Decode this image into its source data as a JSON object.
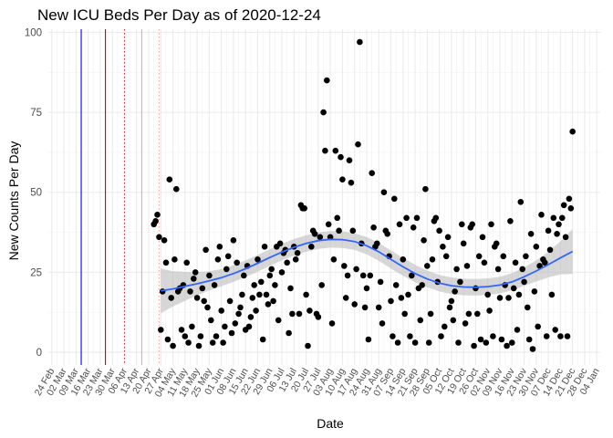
{
  "chart_data": {
    "type": "scatter",
    "title": "New ICU Beds Per Day as of 2020-12-24",
    "xlabel": "Date",
    "ylabel": "New Counts Per Day",
    "xlim": [
      "2020-02-22",
      "2021-01-06"
    ],
    "ylim": [
      -4,
      101
    ],
    "y_ticks": [
      0,
      25,
      50,
      75,
      100
    ],
    "y_tick_labels": [
      "0",
      "25",
      "50",
      "75",
      "100"
    ],
    "x_ticks": [
      "2020-02-24",
      "2020-03-02",
      "2020-03-09",
      "2020-03-16",
      "2020-03-23",
      "2020-03-30",
      "2020-04-06",
      "2020-04-13",
      "2020-04-20",
      "2020-04-27",
      "2020-05-04",
      "2020-05-11",
      "2020-05-18",
      "2020-05-25",
      "2020-06-01",
      "2020-06-08",
      "2020-06-15",
      "2020-06-22",
      "2020-06-29",
      "2020-07-06",
      "2020-07-13",
      "2020-07-20",
      "2020-07-27",
      "2020-08-03",
      "2020-08-10",
      "2020-08-17",
      "2020-08-24",
      "2020-08-31",
      "2020-09-07",
      "2020-09-14",
      "2020-09-21",
      "2020-09-28",
      "2020-10-05",
      "2020-10-12",
      "2020-10-19",
      "2020-10-26",
      "2020-11-02",
      "2020-11-09",
      "2020-11-16",
      "2020-11-23",
      "2020-11-30",
      "2020-12-07",
      "2020-12-14",
      "2020-12-21",
      "2020-12-28",
      "2021-01-04"
    ],
    "x_tick_labels": [
      "24 Feb",
      "02 Mar",
      "09 Mar",
      "16 Mar",
      "23 Mar",
      "30 Mar",
      "06 Apr",
      "13 Apr",
      "20 Apr",
      "27 Apr",
      "04 May",
      "11 May",
      "18 May",
      "25 May",
      "01 Jun",
      "08 Jun",
      "15 Jun",
      "22 Jun",
      "29 Jun",
      "06 Jul",
      "13 Jul",
      "20 Jul",
      "27 Jul",
      "03 Aug",
      "10 Aug",
      "17 Aug",
      "24 Aug",
      "31 Aug",
      "07 Sep",
      "14 Sep",
      "21 Sep",
      "28 Sep",
      "05 Oct",
      "12 Oct",
      "19 Oct",
      "26 Oct",
      "02 Nov",
      "09 Nov",
      "16 Nov",
      "23 Nov",
      "30 Nov",
      "07 Dec",
      "14 Dec",
      "21 Dec",
      "28 Dec",
      "04 Jan"
    ],
    "grid": true,
    "reference_lines": [
      {
        "date": "2020-03-12",
        "color": "#0000ff",
        "style": "solid"
      },
      {
        "date": "2020-03-26",
        "color": "#cc0000",
        "style": "solid"
      },
      {
        "date": "2020-04-06",
        "color": "#cc3333",
        "style": "dotted"
      },
      {
        "date": "2020-04-16",
        "color": "#f4a6a6",
        "style": "solid"
      },
      {
        "date": "2020-04-26",
        "color": "#f4a6a6",
        "style": "dotted"
      }
    ],
    "point_color": "#000000",
    "smooth_color": "#3366ff",
    "band_color": "#bdbdbd",
    "points": [
      [
        "2020-04-23",
        40
      ],
      [
        "2020-04-24",
        41
      ],
      [
        "2020-04-25",
        43
      ],
      [
        "2020-04-26",
        36
      ],
      [
        "2020-04-27",
        7
      ],
      [
        "2020-04-28",
        19
      ],
      [
        "2020-04-29",
        35
      ],
      [
        "2020-04-30",
        28
      ],
      [
        "2020-05-01",
        4
      ],
      [
        "2020-05-02",
        54
      ],
      [
        "2020-05-03",
        17
      ],
      [
        "2020-05-04",
        2
      ],
      [
        "2020-05-05",
        29
      ],
      [
        "2020-05-06",
        51
      ],
      [
        "2020-05-07",
        19
      ],
      [
        "2020-05-08",
        20
      ],
      [
        "2020-05-09",
        7
      ],
      [
        "2020-05-10",
        21
      ],
      [
        "2020-05-11",
        5
      ],
      [
        "2020-05-12",
        28
      ],
      [
        "2020-05-13",
        3
      ],
      [
        "2020-05-14",
        19
      ],
      [
        "2020-05-15",
        8
      ],
      [
        "2020-05-16",
        23
      ],
      [
        "2020-05-17",
        25
      ],
      [
        "2020-05-18",
        17
      ],
      [
        "2020-05-19",
        2
      ],
      [
        "2020-05-20",
        5
      ],
      [
        "2020-05-21",
        20
      ],
      [
        "2020-05-22",
        16
      ],
      [
        "2020-05-23",
        32
      ],
      [
        "2020-05-24",
        14
      ],
      [
        "2020-05-25",
        24
      ],
      [
        "2020-05-26",
        10
      ],
      [
        "2020-05-27",
        3
      ],
      [
        "2020-05-28",
        21
      ],
      [
        "2020-05-29",
        5
      ],
      [
        "2020-05-30",
        29
      ],
      [
        "2020-05-31",
        33
      ],
      [
        "2020-06-01",
        13
      ],
      [
        "2020-06-02",
        3
      ],
      [
        "2020-06-03",
        8
      ],
      [
        "2020-06-04",
        26
      ],
      [
        "2020-06-05",
        30
      ],
      [
        "2020-06-06",
        16
      ],
      [
        "2020-06-07",
        6
      ],
      [
        "2020-06-08",
        35
      ],
      [
        "2020-06-09",
        9
      ],
      [
        "2020-06-10",
        28
      ],
      [
        "2020-06-11",
        12
      ],
      [
        "2020-06-12",
        14
      ],
      [
        "2020-06-13",
        18
      ],
      [
        "2020-06-14",
        24
      ],
      [
        "2020-06-15",
        7
      ],
      [
        "2020-06-16",
        27
      ],
      [
        "2020-06-17",
        8
      ],
      [
        "2020-06-18",
        11
      ],
      [
        "2020-06-19",
        17
      ],
      [
        "2020-06-20",
        21
      ],
      [
        "2020-06-21",
        13
      ],
      [
        "2020-06-22",
        29
      ],
      [
        "2020-06-23",
        18
      ],
      [
        "2020-06-24",
        22
      ],
      [
        "2020-06-25",
        4
      ],
      [
        "2020-06-26",
        33
      ],
      [
        "2020-06-27",
        18
      ],
      [
        "2020-06-28",
        15
      ],
      [
        "2020-06-29",
        24
      ],
      [
        "2020-06-30",
        26
      ],
      [
        "2020-07-01",
        16
      ],
      [
        "2020-07-02",
        21
      ],
      [
        "2020-07-03",
        33
      ],
      [
        "2020-07-04",
        10
      ],
      [
        "2020-07-05",
        34
      ],
      [
        "2020-07-06",
        25
      ],
      [
        "2020-07-07",
        31
      ],
      [
        "2020-07-08",
        32
      ],
      [
        "2020-07-09",
        28
      ],
      [
        "2020-07-10",
        6
      ],
      [
        "2020-07-11",
        20
      ],
      [
        "2020-07-12",
        12
      ],
      [
        "2020-07-13",
        33
      ],
      [
        "2020-07-14",
        29
      ],
      [
        "2020-07-15",
        31
      ],
      [
        "2020-07-16",
        12
      ],
      [
        "2020-07-17",
        46
      ],
      [
        "2020-07-18",
        45
      ],
      [
        "2020-07-19",
        45
      ],
      [
        "2020-07-20",
        18
      ],
      [
        "2020-07-21",
        2
      ],
      [
        "2020-07-22",
        13
      ],
      [
        "2020-07-23",
        33
      ],
      [
        "2020-07-24",
        38
      ],
      [
        "2020-07-25",
        37
      ],
      [
        "2020-07-26",
        12
      ],
      [
        "2020-07-27",
        11
      ],
      [
        "2020-07-28",
        36
      ],
      [
        "2020-07-29",
        21
      ],
      [
        "2020-07-30",
        75
      ],
      [
        "2020-07-31",
        63
      ],
      [
        "2020-08-01",
        85
      ],
      [
        "2020-08-02",
        40
      ],
      [
        "2020-08-03",
        36
      ],
      [
        "2020-08-04",
        9
      ],
      [
        "2020-08-05",
        29
      ],
      [
        "2020-08-06",
        63
      ],
      [
        "2020-08-07",
        42
      ],
      [
        "2020-08-08",
        38
      ],
      [
        "2020-08-09",
        61
      ],
      [
        "2020-08-10",
        54
      ],
      [
        "2020-08-11",
        27
      ],
      [
        "2020-08-12",
        17
      ],
      [
        "2020-08-13",
        24
      ],
      [
        "2020-08-14",
        60
      ],
      [
        "2020-08-15",
        53
      ],
      [
        "2020-08-16",
        38
      ],
      [
        "2020-08-17",
        15
      ],
      [
        "2020-08-18",
        26
      ],
      [
        "2020-08-19",
        65
      ],
      [
        "2020-08-20",
        97
      ],
      [
        "2020-08-21",
        34
      ],
      [
        "2020-08-22",
        24
      ],
      [
        "2020-08-23",
        14
      ],
      [
        "2020-08-24",
        20
      ],
      [
        "2020-08-25",
        4
      ],
      [
        "2020-08-26",
        24
      ],
      [
        "2020-08-27",
        56
      ],
      [
        "2020-08-28",
        39
      ],
      [
        "2020-08-29",
        33
      ],
      [
        "2020-08-30",
        34
      ],
      [
        "2020-08-31",
        14
      ],
      [
        "2020-09-01",
        22
      ],
      [
        "2020-09-02",
        9
      ],
      [
        "2020-09-03",
        50
      ],
      [
        "2020-09-04",
        38
      ],
      [
        "2020-09-05",
        37
      ],
      [
        "2020-09-06",
        30
      ],
      [
        "2020-09-07",
        16
      ],
      [
        "2020-09-08",
        5
      ],
      [
        "2020-09-09",
        48
      ],
      [
        "2020-09-10",
        21
      ],
      [
        "2020-09-11",
        3
      ],
      [
        "2020-09-12",
        40
      ],
      [
        "2020-09-13",
        17
      ],
      [
        "2020-09-14",
        29
      ],
      [
        "2020-09-15",
        12
      ],
      [
        "2020-09-16",
        42
      ],
      [
        "2020-09-17",
        18
      ],
      [
        "2020-09-18",
        5
      ],
      [
        "2020-09-19",
        24
      ],
      [
        "2020-09-20",
        39
      ],
      [
        "2020-09-21",
        3
      ],
      [
        "2020-09-22",
        42
      ],
      [
        "2020-09-23",
        20
      ],
      [
        "2020-09-24",
        10
      ],
      [
        "2020-09-25",
        21
      ],
      [
        "2020-09-26",
        35
      ],
      [
        "2020-09-27",
        51
      ],
      [
        "2020-09-28",
        27
      ],
      [
        "2020-09-29",
        3
      ],
      [
        "2020-09-30",
        12
      ],
      [
        "2020-10-01",
        29
      ],
      [
        "2020-10-02",
        41
      ],
      [
        "2020-10-03",
        42
      ],
      [
        "2020-10-04",
        22
      ],
      [
        "2020-10-05",
        38
      ],
      [
        "2020-10-06",
        5
      ],
      [
        "2020-10-07",
        33
      ],
      [
        "2020-10-08",
        8
      ],
      [
        "2020-10-09",
        30
      ],
      [
        "2020-10-10",
        36
      ],
      [
        "2020-10-11",
        14
      ],
      [
        "2020-10-12",
        16
      ],
      [
        "2020-10-13",
        10
      ],
      [
        "2020-10-14",
        19
      ],
      [
        "2020-10-15",
        26
      ],
      [
        "2020-10-16",
        3
      ],
      [
        "2020-10-17",
        22
      ],
      [
        "2020-10-18",
        40
      ],
      [
        "2020-10-19",
        34
      ],
      [
        "2020-10-20",
        9
      ],
      [
        "2020-10-21",
        27
      ],
      [
        "2020-10-22",
        12
      ],
      [
        "2020-10-23",
        39
      ],
      [
        "2020-10-24",
        40
      ],
      [
        "2020-10-25",
        2
      ],
      [
        "2020-10-26",
        20
      ],
      [
        "2020-10-27",
        12
      ],
      [
        "2020-10-28",
        30
      ],
      [
        "2020-10-29",
        4
      ],
      [
        "2020-10-30",
        36
      ],
      [
        "2020-10-31",
        28
      ],
      [
        "2020-11-01",
        3
      ],
      [
        "2020-11-02",
        18
      ],
      [
        "2020-11-03",
        13
      ],
      [
        "2020-11-04",
        40
      ],
      [
        "2020-11-05",
        5
      ],
      [
        "2020-11-06",
        33
      ],
      [
        "2020-11-07",
        34
      ],
      [
        "2020-11-08",
        26
      ],
      [
        "2020-11-09",
        17
      ],
      [
        "2020-11-10",
        4
      ],
      [
        "2020-11-11",
        30
      ],
      [
        "2020-11-12",
        21
      ],
      [
        "2020-11-13",
        2
      ],
      [
        "2020-11-14",
        17
      ],
      [
        "2020-11-15",
        41
      ],
      [
        "2020-11-16",
        3
      ],
      [
        "2020-11-17",
        20
      ],
      [
        "2020-11-18",
        28
      ],
      [
        "2020-11-19",
        7
      ],
      [
        "2020-11-20",
        18
      ],
      [
        "2020-11-21",
        47
      ],
      [
        "2020-11-22",
        26
      ],
      [
        "2020-11-23",
        22
      ],
      [
        "2020-11-24",
        30
      ],
      [
        "2020-11-25",
        14
      ],
      [
        "2020-11-26",
        4
      ],
      [
        "2020-11-27",
        37
      ],
      [
        "2020-11-28",
        1
      ],
      [
        "2020-11-29",
        19
      ],
      [
        "2020-11-30",
        33
      ],
      [
        "2020-12-01",
        8
      ],
      [
        "2020-12-02",
        27
      ],
      [
        "2020-12-03",
        43
      ],
      [
        "2020-12-04",
        29
      ],
      [
        "2020-12-05",
        28
      ],
      [
        "2020-12-06",
        5
      ],
      [
        "2020-12-07",
        38
      ],
      [
        "2020-12-08",
        32
      ],
      [
        "2020-12-09",
        18
      ],
      [
        "2020-12-10",
        42
      ],
      [
        "2020-12-11",
        7
      ],
      [
        "2020-12-12",
        37
      ],
      [
        "2020-12-13",
        40
      ],
      [
        "2020-12-14",
        5
      ],
      [
        "2020-12-15",
        42
      ],
      [
        "2020-12-16",
        46
      ],
      [
        "2020-12-17",
        36
      ],
      [
        "2020-12-18",
        5
      ],
      [
        "2020-12-19",
        48
      ],
      [
        "2020-12-20",
        45
      ],
      [
        "2020-12-21",
        69
      ]
    ],
    "smooth": [
      [
        "2020-04-27",
        19.2
      ],
      [
        "2020-05-04",
        19.8
      ],
      [
        "2020-05-11",
        20.6
      ],
      [
        "2020-05-18",
        21.4
      ],
      [
        "2020-05-25",
        22.3
      ],
      [
        "2020-06-01",
        23.3
      ],
      [
        "2020-06-08",
        24.6
      ],
      [
        "2020-06-15",
        26.1
      ],
      [
        "2020-06-22",
        27.8
      ],
      [
        "2020-06-29",
        29.6
      ],
      [
        "2020-07-06",
        31.3
      ],
      [
        "2020-07-13",
        32.8
      ],
      [
        "2020-07-20",
        34.0
      ],
      [
        "2020-07-27",
        34.9
      ],
      [
        "2020-08-03",
        35.3
      ],
      [
        "2020-08-10",
        35.2
      ],
      [
        "2020-08-17",
        34.6
      ],
      [
        "2020-08-24",
        33.3
      ],
      [
        "2020-08-31",
        31.4
      ],
      [
        "2020-09-07",
        29.0
      ],
      [
        "2020-09-14",
        26.7
      ],
      [
        "2020-09-21",
        24.6
      ],
      [
        "2020-09-28",
        22.9
      ],
      [
        "2020-10-05",
        21.6
      ],
      [
        "2020-10-12",
        20.8
      ],
      [
        "2020-10-19",
        20.4
      ],
      [
        "2020-10-26",
        20.3
      ],
      [
        "2020-11-02",
        20.5
      ],
      [
        "2020-11-09",
        21.0
      ],
      [
        "2020-11-16",
        22.0
      ],
      [
        "2020-11-23",
        23.6
      ],
      [
        "2020-11-30",
        25.4
      ],
      [
        "2020-12-07",
        27.4
      ],
      [
        "2020-12-14",
        29.5
      ],
      [
        "2020-12-21",
        31.5
      ]
    ],
    "band_halfwidth": [
      7.0,
      5.5,
      4.5,
      3.6,
      3.0,
      2.7,
      2.6,
      2.6,
      2.6,
      2.6,
      2.6,
      2.6,
      2.6,
      2.6,
      2.6,
      2.6,
      2.6,
      2.7,
      2.8,
      2.8,
      2.8,
      2.7,
      2.6,
      2.6,
      2.6,
      2.6,
      2.6,
      2.6,
      2.6,
      2.7,
      2.9,
      3.3,
      4.0,
      5.2,
      7.0
    ]
  }
}
